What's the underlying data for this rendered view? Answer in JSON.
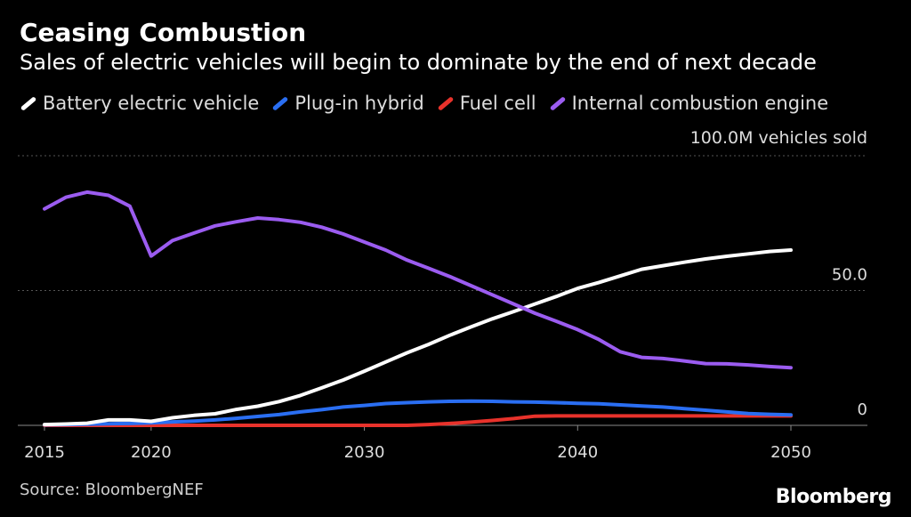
{
  "colors": {
    "background": "#000000",
    "grid": "#555555",
    "tick_text": "#dddddd"
  },
  "source": "Source: BloombergNEF",
  "brand": "Bloomberg",
  "chart_data": {
    "type": "line",
    "title": "Ceasing Combustion",
    "subtitle": "Sales of electric vehicles will begin to dominate by the end of next decade",
    "ylabel": "",
    "y_unit_label": "100.0M vehicles sold",
    "xlabel": "",
    "xlim": [
      2015,
      2053
    ],
    "ylim": [
      0,
      100
    ],
    "x_ticks": [
      2015,
      2020,
      2030,
      2040,
      2050
    ],
    "y_ticks": [
      {
        "value": 0,
        "label": "0"
      },
      {
        "value": 50,
        "label": "50.0"
      },
      {
        "value": 100,
        "label": ""
      }
    ],
    "grid": "horizontal dotted",
    "legend_position": "top",
    "x": [
      2015,
      2016,
      2017,
      2018,
      2019,
      2020,
      2021,
      2022,
      2023,
      2024,
      2025,
      2026,
      2027,
      2028,
      2029,
      2030,
      2031,
      2032,
      2033,
      2034,
      2035,
      2036,
      2037,
      2038,
      2039,
      2040,
      2041,
      2042,
      2043,
      2044,
      2045,
      2046,
      2047,
      2048,
      2049,
      2050
    ],
    "series": [
      {
        "name": "Battery electric vehicle",
        "color": "#ffffff",
        "values": [
          0.3,
          0.5,
          0.8,
          2.0,
          2.0,
          1.5,
          2.8,
          3.7,
          4.3,
          5.9,
          7.1,
          8.8,
          11.1,
          13.9,
          16.8,
          20.1,
          23.5,
          26.9,
          30.0,
          33.4,
          36.5,
          39.5,
          42.2,
          45.0,
          47.8,
          50.8,
          53.0,
          55.4,
          57.9,
          59.2,
          60.5,
          61.7,
          62.7,
          63.6,
          64.5,
          65.0
        ]
      },
      {
        "name": "Plug-in hybrid",
        "color": "#2a6ef2",
        "values": [
          0.2,
          0.3,
          0.4,
          0.6,
          0.7,
          0.9,
          1.3,
          1.6,
          2.0,
          2.6,
          3.3,
          4.0,
          5.0,
          5.8,
          6.8,
          7.4,
          8.1,
          8.4,
          8.7,
          8.9,
          9.0,
          8.9,
          8.7,
          8.6,
          8.4,
          8.2,
          8.0,
          7.6,
          7.2,
          6.8,
          6.2,
          5.6,
          5.0,
          4.4,
          4.1,
          3.9
        ]
      },
      {
        "name": "Fuel cell",
        "color": "#e8322b",
        "values": [
          0,
          0,
          0,
          0,
          0,
          0,
          0,
          0,
          0,
          0,
          0,
          0,
          0,
          0,
          0,
          0,
          0,
          0,
          0.3,
          0.7,
          1.2,
          1.8,
          2.5,
          3.4,
          3.5,
          3.5,
          3.5,
          3.5,
          3.5,
          3.5,
          3.5,
          3.5,
          3.5,
          3.5,
          3.5,
          3.5
        ]
      },
      {
        "name": "Internal combustion engine",
        "color": "#9b5cf0",
        "values": [
          80.3,
          84.6,
          86.5,
          85.3,
          81.3,
          62.8,
          68.5,
          71.3,
          74.0,
          75.5,
          76.9,
          76.3,
          75.3,
          73.5,
          71.0,
          68.0,
          65.0,
          61.3,
          58.3,
          55.2,
          51.8,
          48.4,
          45.0,
          41.6,
          38.6,
          35.5,
          31.8,
          27.3,
          25.2,
          24.8,
          23.9,
          22.9,
          22.8,
          22.4,
          21.8,
          21.4
        ]
      }
    ]
  }
}
